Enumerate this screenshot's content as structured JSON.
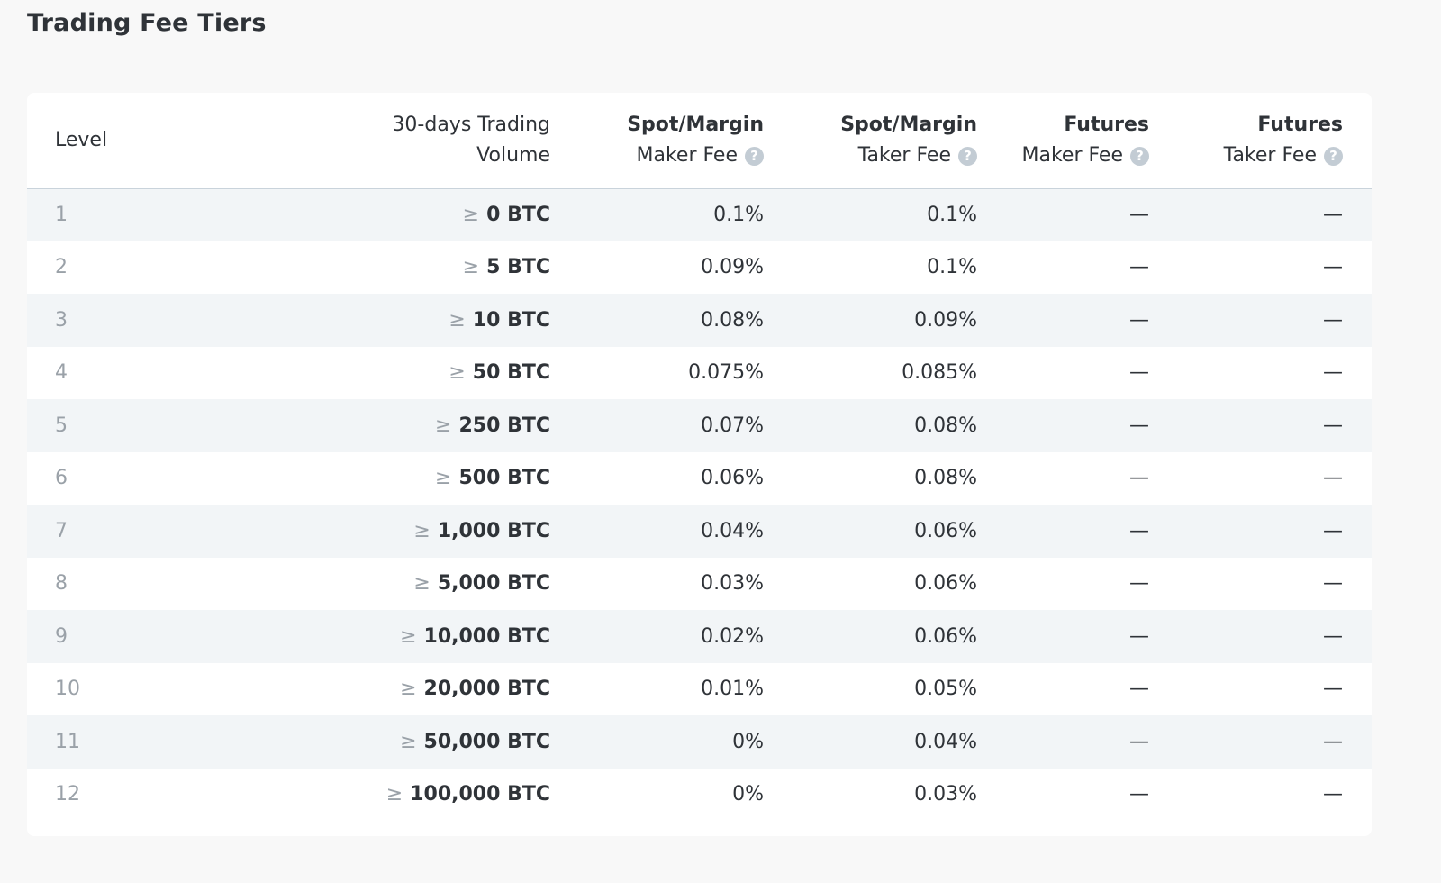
{
  "page": {
    "title": "Trading Fee Tiers"
  },
  "table": {
    "headers": {
      "level": "Level",
      "volume_line1": "30-days Trading",
      "volume_line2": "Volume",
      "spot_maker_line1": "Spot/Margin",
      "spot_maker_line2": "Maker Fee",
      "spot_taker_line1": "Spot/Margin",
      "spot_taker_line2": "Taker Fee",
      "futures_maker_line1": "Futures",
      "futures_maker_line2": "Maker Fee",
      "futures_taker_line1": "Futures",
      "futures_taker_line2": "Taker Fee",
      "help_glyph": "?"
    },
    "gte_symbol": "≥",
    "rows": [
      {
        "level": "1",
        "volume": "0 BTC",
        "spot_maker": "0.1%",
        "spot_taker": "0.1%",
        "futures_maker": "—",
        "futures_taker": "—"
      },
      {
        "level": "2",
        "volume": "5 BTC",
        "spot_maker": "0.09%",
        "spot_taker": "0.1%",
        "futures_maker": "—",
        "futures_taker": "—"
      },
      {
        "level": "3",
        "volume": "10 BTC",
        "spot_maker": "0.08%",
        "spot_taker": "0.09%",
        "futures_maker": "—",
        "futures_taker": "—"
      },
      {
        "level": "4",
        "volume": "50 BTC",
        "spot_maker": "0.075%",
        "spot_taker": "0.085%",
        "futures_maker": "—",
        "futures_taker": "—"
      },
      {
        "level": "5",
        "volume": "250 BTC",
        "spot_maker": "0.07%",
        "spot_taker": "0.08%",
        "futures_maker": "—",
        "futures_taker": "—"
      },
      {
        "level": "6",
        "volume": "500 BTC",
        "spot_maker": "0.06%",
        "spot_taker": "0.08%",
        "futures_maker": "—",
        "futures_taker": "—"
      },
      {
        "level": "7",
        "volume": "1,000 BTC",
        "spot_maker": "0.04%",
        "spot_taker": "0.06%",
        "futures_maker": "—",
        "futures_taker": "—"
      },
      {
        "level": "8",
        "volume": "5,000 BTC",
        "spot_maker": "0.03%",
        "spot_taker": "0.06%",
        "futures_maker": "—",
        "futures_taker": "—"
      },
      {
        "level": "9",
        "volume": "10,000 BTC",
        "spot_maker": "0.02%",
        "spot_taker": "0.06%",
        "futures_maker": "—",
        "futures_taker": "—"
      },
      {
        "level": "10",
        "volume": "20,000 BTC",
        "spot_maker": "0.01%",
        "spot_taker": "0.05%",
        "futures_maker": "—",
        "futures_taker": "—"
      },
      {
        "level": "11",
        "volume": "50,000 BTC",
        "spot_maker": "0%",
        "spot_taker": "0.04%",
        "futures_maker": "—",
        "futures_taker": "—"
      },
      {
        "level": "12",
        "volume": "100,000 BTC",
        "spot_maker": "0%",
        "spot_taker": "0.03%",
        "futures_maker": "—",
        "futures_taker": "—"
      }
    ]
  },
  "colors": {
    "page_background": "#f8f8f8",
    "card_background": "#ffffff",
    "stripe_background": "#f2f5f7",
    "text_primary": "#2f3338",
    "text_muted": "#9aa1a8",
    "help_icon": "#c3ccd4",
    "header_divider": "#c9d3db"
  },
  "icons": {
    "help": "question-circle-icon"
  }
}
